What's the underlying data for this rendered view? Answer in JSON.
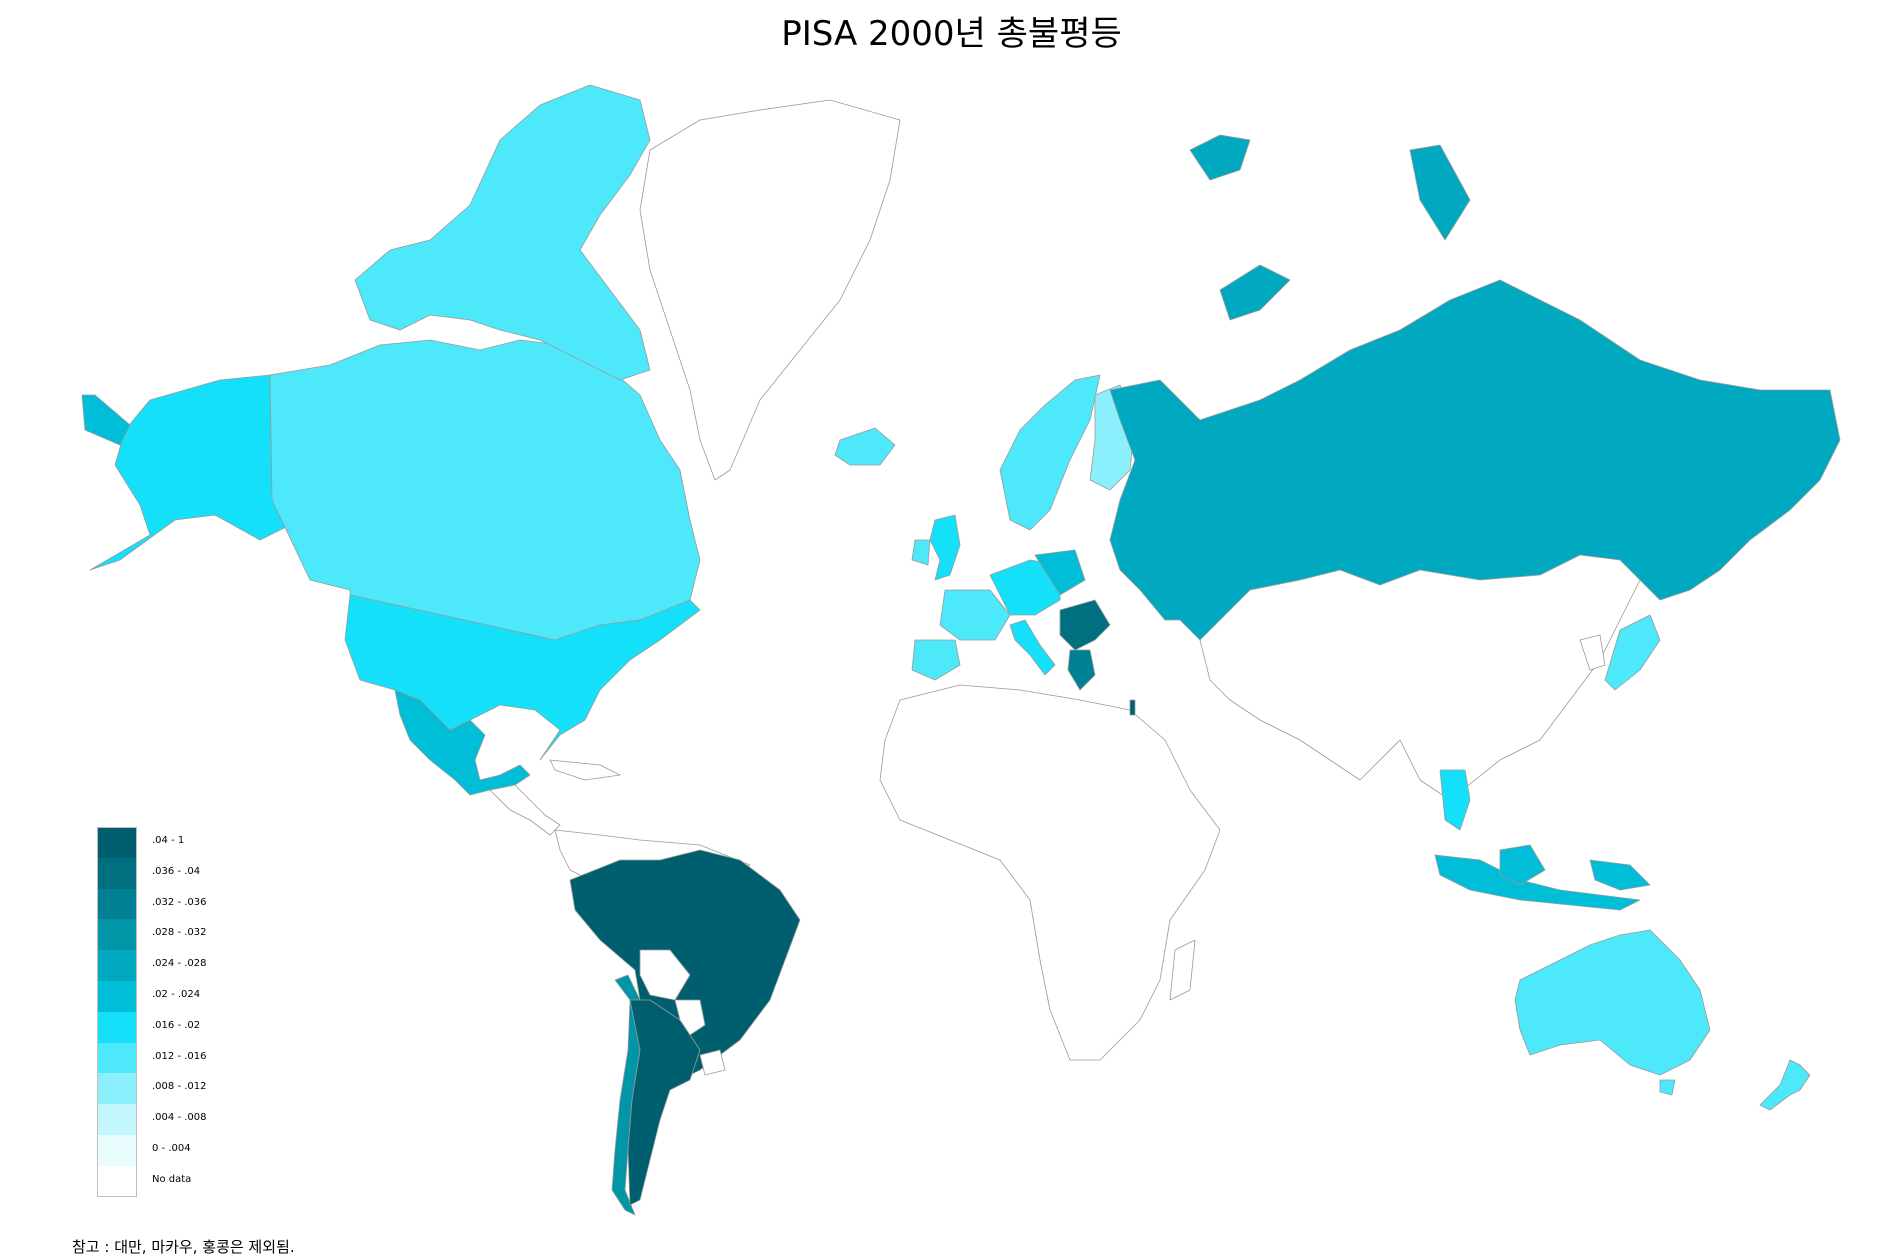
{
  "title": "PISA 2000년 총불평등",
  "footnote": "참고 : 대만, 마카우, 홍콩은 제외됨.",
  "legend": [
    {
      "label": ".04 - 1",
      "color": "#005f6e"
    },
    {
      "label": ".036 - .04",
      "color": "#006f80"
    },
    {
      "label": ".032 - .036",
      "color": "#008093"
    },
    {
      "label": ".028 - .032",
      "color": "#0096a8"
    },
    {
      "label": ".024 - .028",
      "color": "#00a9c0"
    },
    {
      "label": ".02 - .024",
      "color": "#00bed8"
    },
    {
      "label": ".016 - .02",
      "color": "#14e0fa"
    },
    {
      "label": ".012 - .016",
      "color": "#4de8fa"
    },
    {
      "label": ".008 - .012",
      "color": "#8cf0fc"
    },
    {
      "label": ".004 - .008",
      "color": "#c4f7fd"
    },
    {
      "label": "0 - .004",
      "color": "#e8fcfe"
    },
    {
      "label": "No data",
      "color": "#ffffff"
    }
  ]
}
